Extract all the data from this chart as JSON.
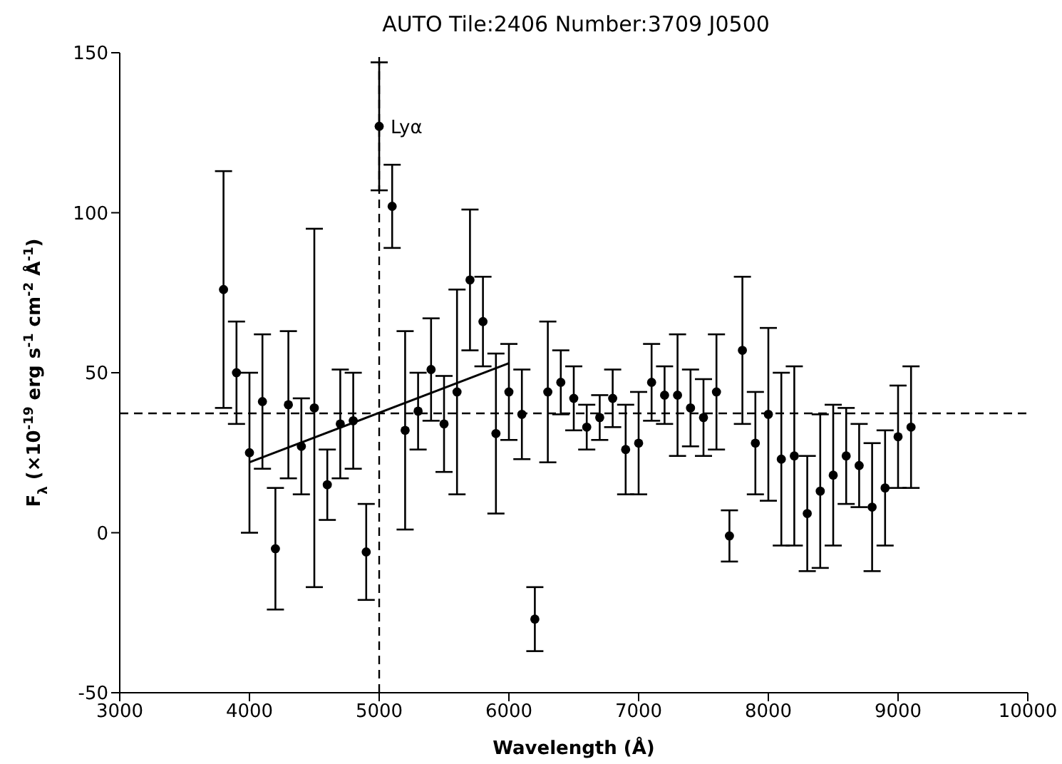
{
  "chart_data": {
    "type": "scatter",
    "title": "AUTO Tile:2406 Number:3709 J0500",
    "xlabel": "Wavelength (Å)",
    "ylabel": "F$_{λ}$ (×10$^{-19}$ erg s$^{-1}$ cm$^{-2}$ Å$^{-1}$)",
    "xlim": [
      3000,
      10000
    ],
    "xticks": [
      3000,
      4000,
      5000,
      6000,
      7000,
      8000,
      9000,
      10000
    ],
    "ylim": [
      -50,
      150
    ],
    "yticks": [
      -50,
      0,
      50,
      100,
      150
    ],
    "marker": "circle",
    "series": [
      {
        "color": "#000000",
        "x": [
          3800,
          3900,
          4000,
          4100,
          4200,
          4300,
          4400,
          4500,
          4600,
          4700,
          4800,
          4900,
          5000,
          5100,
          5200,
          5300,
          5400,
          5500,
          5600,
          5700,
          5800,
          5900,
          6000,
          6100,
          6200,
          6300,
          6400,
          6500,
          6600,
          6700,
          6800,
          6900,
          7000,
          7100,
          7200,
          7300,
          7400,
          7500,
          7600,
          7700,
          7800,
          7900,
          8000,
          8100,
          8200,
          8300,
          8400,
          8500,
          8600,
          8700,
          8800,
          8900,
          9000,
          9100
        ],
        "values": [
          76,
          50,
          25,
          41,
          -5,
          40,
          27,
          39,
          15,
          34,
          35,
          -6,
          127,
          102,
          32,
          38,
          51,
          34,
          44,
          79,
          66,
          31,
          44,
          37,
          -27,
          44,
          47,
          42,
          33,
          36,
          42,
          26,
          28,
          47,
          43,
          43,
          39,
          36,
          44,
          -1,
          57,
          28,
          37,
          23,
          24,
          6,
          13,
          18,
          24,
          21,
          8,
          14,
          30,
          33
        ],
        "errors": [
          37,
          16,
          25,
          21,
          19,
          23,
          15,
          56,
          11,
          17,
          15,
          15,
          20,
          13,
          31,
          12,
          16,
          15,
          32,
          22,
          14,
          25,
          15,
          14,
          10,
          22,
          10,
          10,
          7,
          7,
          9,
          14,
          16,
          12,
          9,
          19,
          12,
          12,
          18,
          8,
          23,
          16,
          27,
          27,
          28,
          18,
          24,
          22,
          15,
          13,
          20,
          18,
          16,
          19
        ]
      },
      {
        "type": "line",
        "color": "#000000",
        "x": [
          4000,
          6000
        ],
        "values": [
          22,
          53
        ],
        "marker": "none",
        "line_style": "solid"
      }
    ],
    "ref_lines": [
      {
        "axis": "x",
        "value": 5000,
        "color": "#000000",
        "line_style": "dashed"
      },
      {
        "axis": "y",
        "value": 37.3,
        "color": "#000000",
        "line_style": "dashed"
      }
    ],
    "annotations": [
      {
        "text": "Lyα",
        "x": 5000,
        "y": 127
      }
    ]
  }
}
